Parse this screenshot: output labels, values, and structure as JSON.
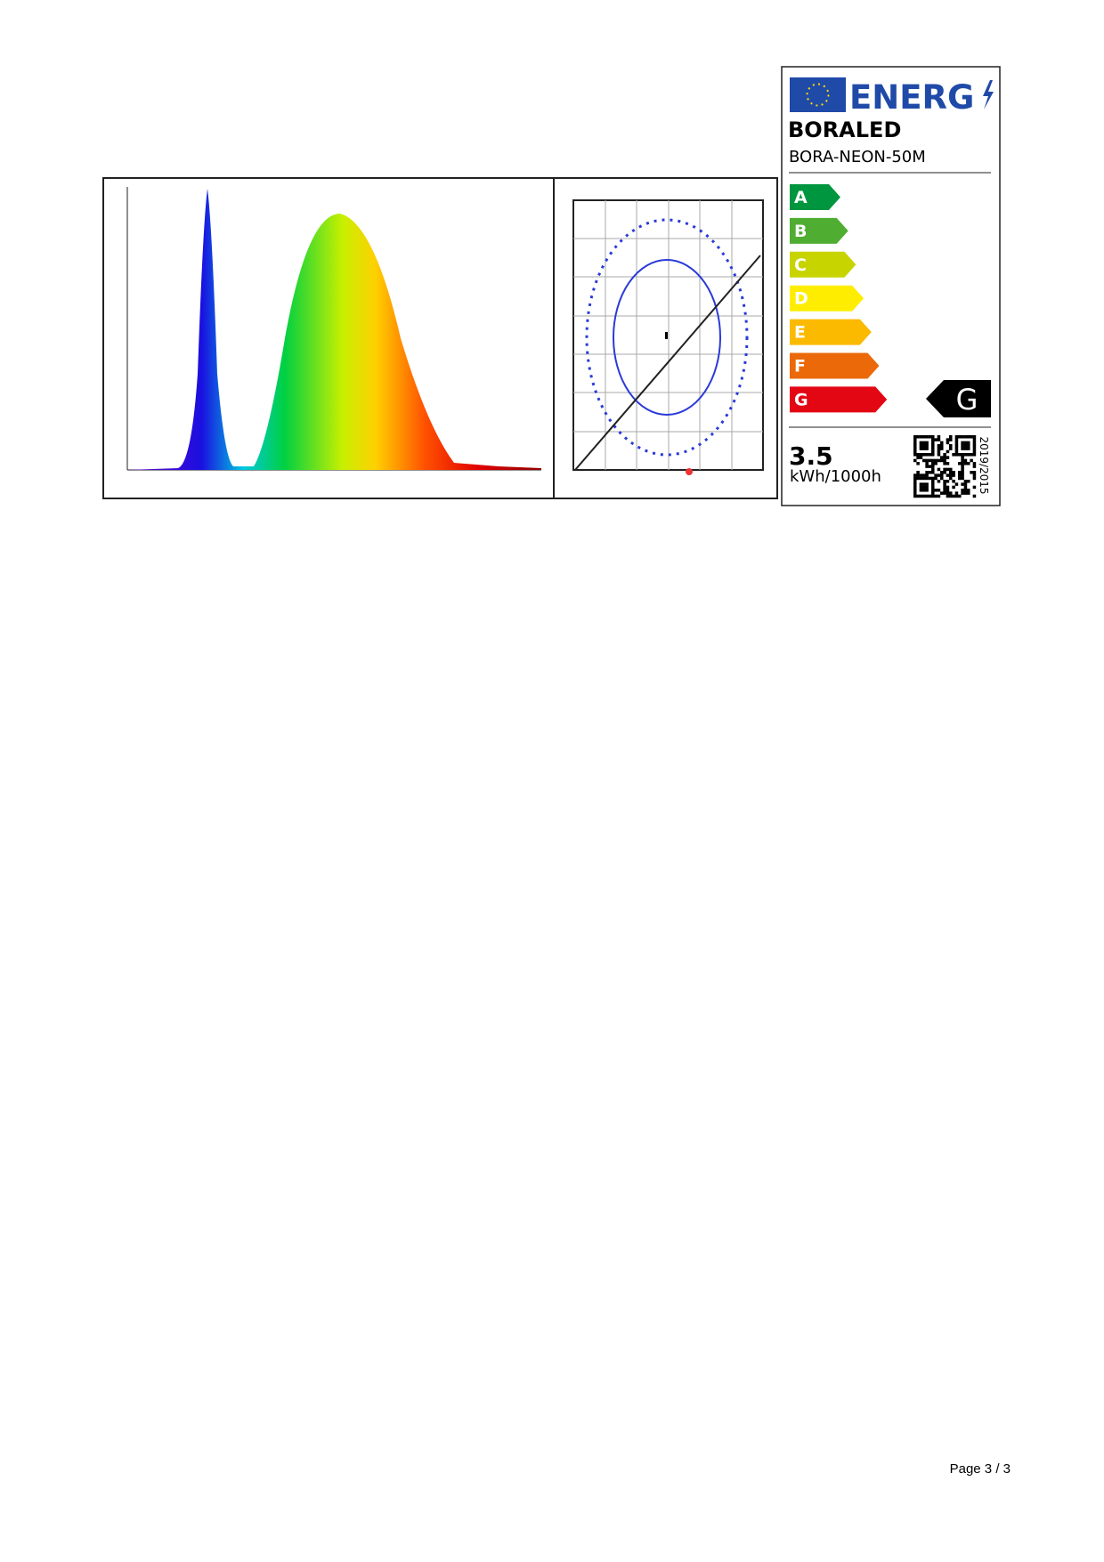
{
  "energy_label": {
    "logo": "ENERG",
    "supplier": "BORALED",
    "model": "BORA-NEON-50M",
    "classes": [
      "A",
      "B",
      "C",
      "D",
      "E",
      "F",
      "G"
    ],
    "rated_class": "G",
    "consumption": 3.5,
    "unit": "kWh/1000h",
    "regulation": "2019/2015"
  },
  "footer": {
    "page": "Page 3 / 3"
  }
}
